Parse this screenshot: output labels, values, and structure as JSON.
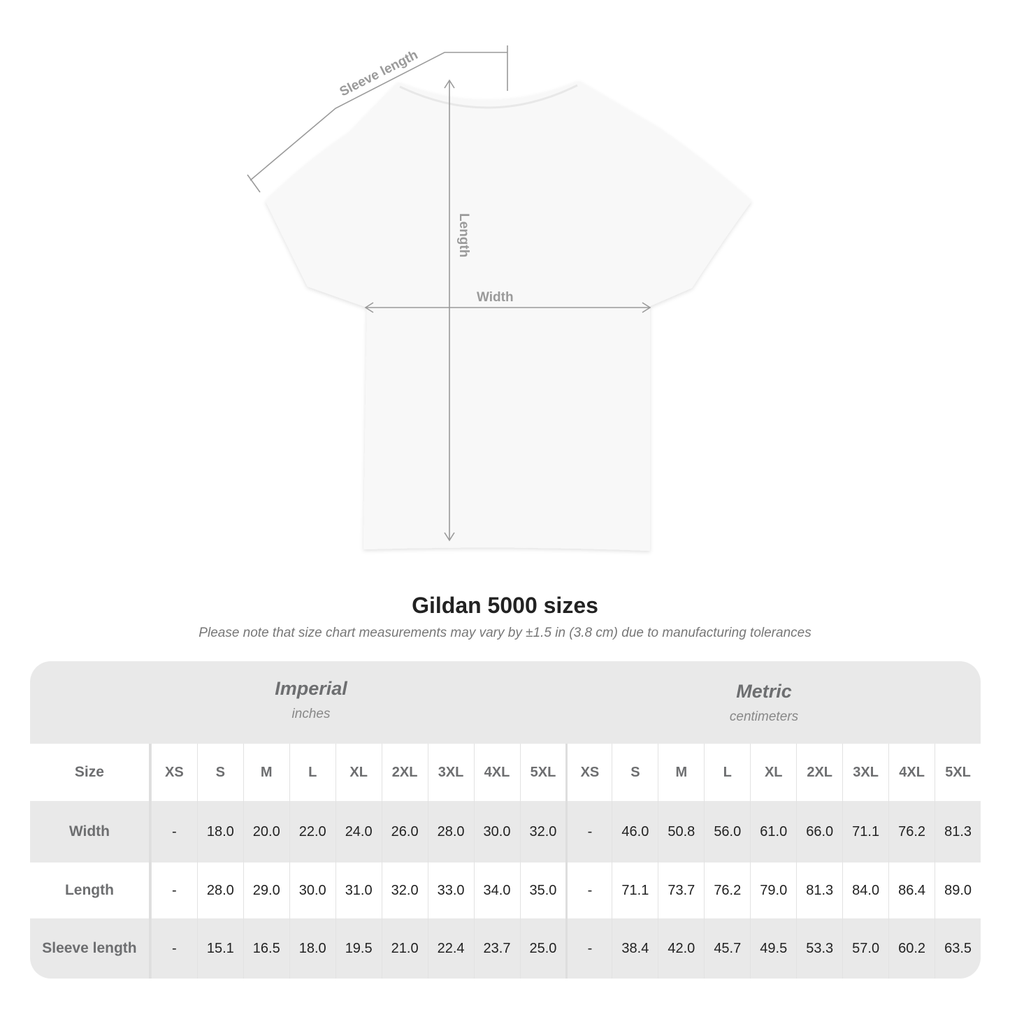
{
  "diagram": {
    "labels": {
      "sleeve": "Sleeve length",
      "length": "Length",
      "width": "Width"
    },
    "colors": {
      "shirt": "#f8f8f8",
      "measure_line": "#9a9a9a",
      "label": "#9a9a9a"
    }
  },
  "header": {
    "title": "Gildan 5000 sizes",
    "subtitle": "Please note that size chart measurements may vary by ±1.5 in (3.8 cm) due to manufacturing tolerances"
  },
  "table": {
    "imperial": {
      "name": "Imperial",
      "unit": "inches"
    },
    "metric": {
      "name": "Metric",
      "unit": "centimeters"
    },
    "size_label": "Size",
    "sizes": [
      "XS",
      "S",
      "M",
      "L",
      "XL",
      "2XL",
      "3XL",
      "4XL",
      "5XL"
    ],
    "rows": [
      {
        "label": "Width",
        "imperial": [
          "-",
          "18.0",
          "20.0",
          "22.0",
          "24.0",
          "26.0",
          "28.0",
          "30.0",
          "32.0"
        ],
        "metric": [
          "-",
          "46.0",
          "50.8",
          "56.0",
          "61.0",
          "66.0",
          "71.1",
          "76.2",
          "81.3"
        ]
      },
      {
        "label": "Length",
        "imperial": [
          "-",
          "28.0",
          "29.0",
          "30.0",
          "31.0",
          "32.0",
          "33.0",
          "34.0",
          "35.0"
        ],
        "metric": [
          "-",
          "71.1",
          "73.7",
          "76.2",
          "79.0",
          "81.3",
          "84.0",
          "86.4",
          "89.0"
        ]
      },
      {
        "label": "Sleeve length",
        "imperial": [
          "-",
          "15.1",
          "16.5",
          "18.0",
          "19.5",
          "21.0",
          "22.4",
          "23.7",
          "25.0"
        ],
        "metric": [
          "-",
          "38.4",
          "42.0",
          "45.7",
          "49.5",
          "53.3",
          "57.0",
          "60.2",
          "63.5"
        ]
      }
    ],
    "colors": {
      "band": "#e9e9e9",
      "label_text": "#6d6e70"
    }
  }
}
